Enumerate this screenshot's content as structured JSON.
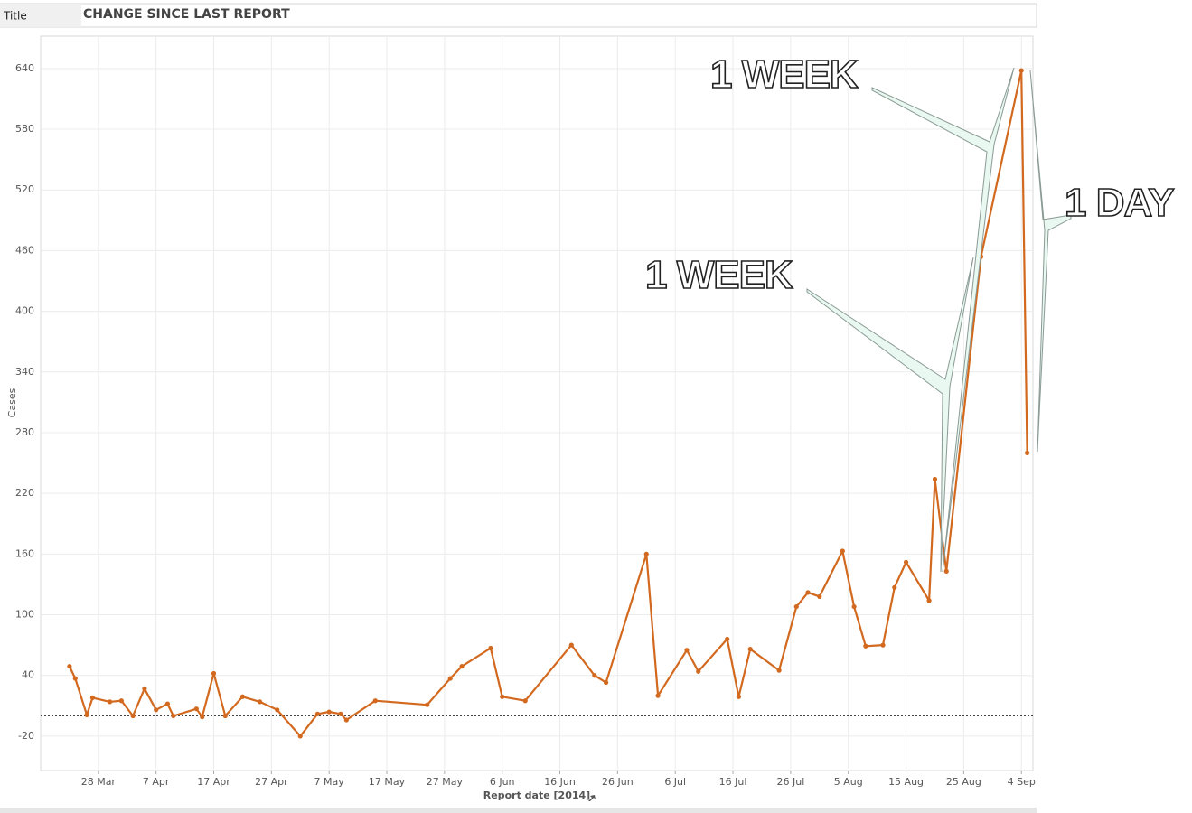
{
  "panel_label": "Title",
  "chart_data": {
    "type": "line",
    "title": "CHANGE SINCE LAST REPORT",
    "x_label": "Report date [2014]",
    "y_label": "Cases",
    "color": "#d2691e",
    "x": [
      "2014-03-23",
      "2014-03-24",
      "2014-03-26",
      "2014-03-27",
      "2014-03-30",
      "2014-04-01",
      "2014-04-03",
      "2014-04-05",
      "2014-04-07",
      "2014-04-09",
      "2014-04-10",
      "2014-04-14",
      "2014-04-15",
      "2014-04-17",
      "2014-04-19",
      "2014-04-22",
      "2014-04-25",
      "2014-04-28",
      "2014-05-02",
      "2014-05-05",
      "2014-05-07",
      "2014-05-09",
      "2014-05-10",
      "2014-05-15",
      "2014-05-24",
      "2014-05-28",
      "2014-05-30",
      "2014-06-04",
      "2014-06-06",
      "2014-06-10",
      "2014-06-18",
      "2014-06-22",
      "2014-06-24",
      "2014-07-01",
      "2014-07-03",
      "2014-07-08",
      "2014-07-10",
      "2014-07-15",
      "2014-07-17",
      "2014-07-19",
      "2014-07-24",
      "2014-07-27",
      "2014-07-29",
      "2014-07-31",
      "2014-08-04",
      "2014-08-06",
      "2014-08-08",
      "2014-08-11",
      "2014-08-13",
      "2014-08-15",
      "2014-08-19",
      "2014-08-20",
      "2014-08-22",
      "2014-08-28",
      "2014-09-04",
      "2014-09-05"
    ],
    "values": [
      49,
      37,
      1,
      18,
      14,
      15,
      0,
      27,
      6,
      12,
      0,
      7,
      -1,
      42,
      0,
      19,
      14,
      6,
      -20,
      2,
      4,
      2,
      -4,
      15,
      11,
      37,
      49,
      67,
      19,
      15,
      70,
      40,
      33,
      160,
      20,
      65,
      44,
      76,
      19,
      66,
      45,
      108,
      122,
      118,
      163,
      108,
      69,
      70,
      127,
      152,
      114,
      234,
      143,
      454,
      638,
      260
    ],
    "reference_line": 0,
    "xlim": [
      "2014-03-18",
      "2014-09-06"
    ],
    "xticks": [
      {
        "value": "2014-03-28",
        "label": "28 Mar"
      },
      {
        "value": "2014-04-07",
        "label": "7 Apr"
      },
      {
        "value": "2014-04-17",
        "label": "17 Apr"
      },
      {
        "value": "2014-04-27",
        "label": "27 Apr"
      },
      {
        "value": "2014-05-07",
        "label": "7 May"
      },
      {
        "value": "2014-05-17",
        "label": "17 May"
      },
      {
        "value": "2014-05-27",
        "label": "27 May"
      },
      {
        "value": "2014-06-06",
        "label": "6 Jun"
      },
      {
        "value": "2014-06-16",
        "label": "16 Jun"
      },
      {
        "value": "2014-06-26",
        "label": "26 Jun"
      },
      {
        "value": "2014-07-06",
        "label": "6 Jul"
      },
      {
        "value": "2014-07-16",
        "label": "16 Jul"
      },
      {
        "value": "2014-07-26",
        "label": "26 Jul"
      },
      {
        "value": "2014-08-05",
        "label": "5 Aug"
      },
      {
        "value": "2014-08-15",
        "label": "15 Aug"
      },
      {
        "value": "2014-08-25",
        "label": "25 Aug"
      },
      {
        "value": "2014-09-04",
        "label": "4 Sep"
      }
    ],
    "ylim": [
      -54,
      672
    ],
    "yticks": [
      -20,
      40,
      100,
      160,
      220,
      280,
      340,
      400,
      460,
      520,
      580,
      640
    ],
    "grid": true,
    "annotations": [
      "1 WEEK",
      "1 WEEK",
      "1 DAY"
    ]
  }
}
